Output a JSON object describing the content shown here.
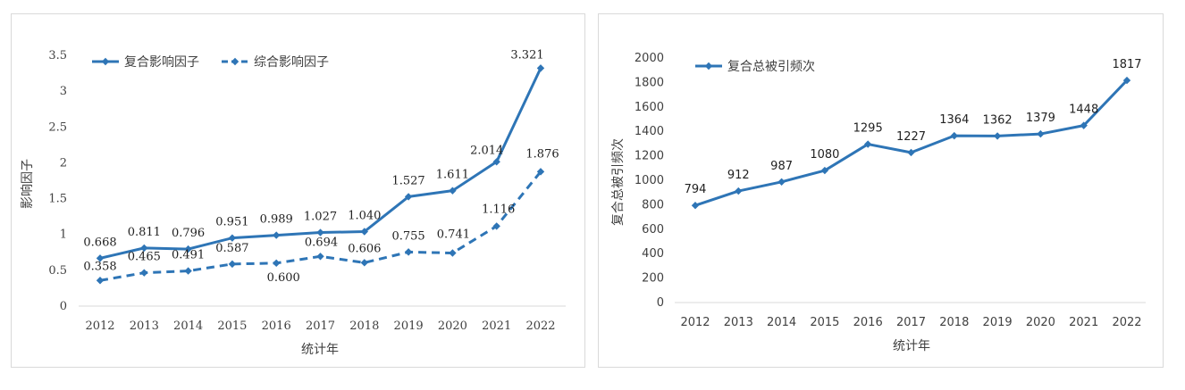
{
  "chart_data": [
    {
      "type": "line",
      "title": "",
      "categories": [
        "2012",
        "2013",
        "2014",
        "2015",
        "2016",
        "2017",
        "2018",
        "2019",
        "2020",
        "2021",
        "2022"
      ],
      "series": [
        {
          "name": "复合影响因子",
          "values": [
            0.668,
            0.811,
            0.796,
            0.951,
            0.989,
            1.027,
            1.04,
            1.527,
            1.611,
            2.014,
            3.321
          ],
          "labels": [
            "0.668",
            "0.811",
            "0.796",
            "0.951",
            "0.989",
            "1.027",
            "1.040",
            "1.527",
            "1.611",
            "2.014",
            "3.321"
          ],
          "color": "#2e75b6",
          "style": "solid"
        },
        {
          "name": "综合影响因子",
          "values": [
            0.358,
            0.465,
            0.491,
            0.587,
            0.6,
            0.694,
            0.606,
            0.755,
            0.741,
            1.116,
            1.876
          ],
          "labels": [
            "0.358",
            "0.465",
            "0.491",
            "0.587",
            "0.600",
            "0.694",
            "0.606",
            "0.755",
            "0.741",
            "1.116",
            "1.876"
          ],
          "color": "#2e75b6",
          "style": "dashed"
        }
      ],
      "xlabel": "统计年",
      "ylabel": "影响因子",
      "ylim": [
        0,
        3.5
      ],
      "yticks": [
        "0",
        "0.5",
        "1",
        "1.5",
        "2",
        "2.5",
        "3",
        "3.5"
      ],
      "grid": false,
      "legend_position": "top-left"
    },
    {
      "type": "line",
      "title": "",
      "categories": [
        "2012",
        "2013",
        "2014",
        "2015",
        "2016",
        "2017",
        "2018",
        "2019",
        "2020",
        "2021",
        "2022"
      ],
      "series": [
        {
          "name": "复合总被引频次",
          "values": [
            794,
            912,
            987,
            1080,
            1295,
            1227,
            1364,
            1362,
            1379,
            1448,
            1817
          ],
          "labels": [
            "794",
            "912",
            "987",
            "1080",
            "1295",
            "1227",
            "1364",
            "1362",
            "1379",
            "1448",
            "1817"
          ],
          "color": "#2e75b6",
          "style": "solid"
        }
      ],
      "xlabel": "统计年",
      "ylabel": "复合总被引频次",
      "ylim": [
        0,
        2000
      ],
      "yticks": [
        "0",
        "200",
        "400",
        "600",
        "800",
        "1000",
        "1200",
        "1400",
        "1600",
        "1800",
        "2000"
      ],
      "grid": false,
      "legend_position": "top-left"
    }
  ]
}
